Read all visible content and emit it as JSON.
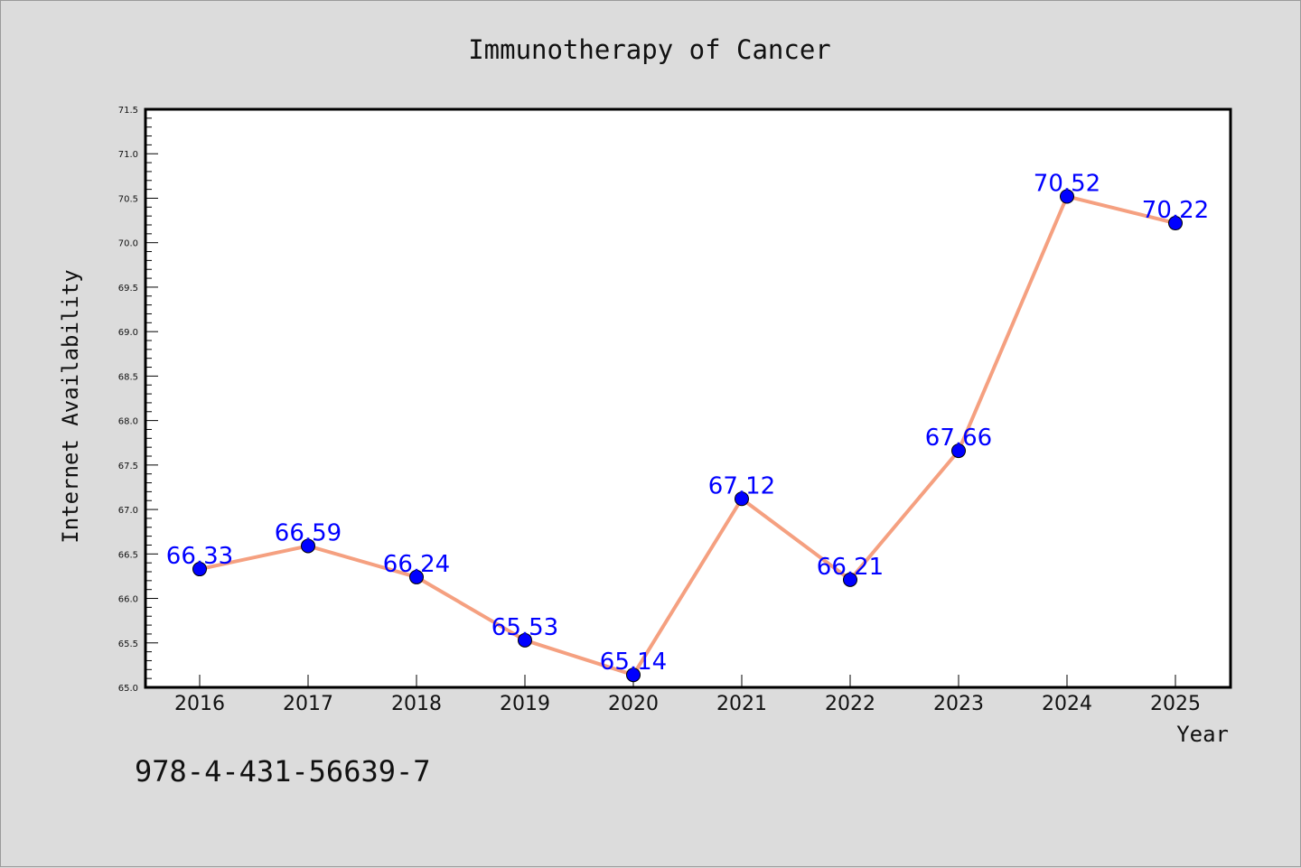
{
  "chart_data": {
    "type": "line",
    "title": "Immunotherapy of Cancer",
    "xlabel": "Year",
    "ylabel": "Internet Availability",
    "categories": [
      "2016",
      "2017",
      "2018",
      "2019",
      "2020",
      "2021",
      "2022",
      "2023",
      "2024",
      "2025"
    ],
    "series": [
      {
        "values": [
          66.33,
          66.59,
          66.24,
          65.53,
          65.14,
          67.12,
          66.21,
          67.66,
          70.52,
          70.22
        ],
        "labels": [
          "66.33",
          "66.59",
          "66.24",
          "65.53",
          "65.14",
          "67.12",
          "66.21",
          "67.66",
          "70.52",
          "70.22"
        ]
      }
    ],
    "ylim": [
      65.0,
      71.5
    ],
    "yticks": [
      "65.0",
      "65.5",
      "66.0",
      "66.5",
      "67.0",
      "67.5",
      "68.0",
      "68.5",
      "69.0",
      "69.5",
      "70.0",
      "70.5",
      "71.0",
      "71.5"
    ],
    "grid": false,
    "line_color": "#f5a080",
    "marker_color": "#0000ff",
    "label_color": "#0000ff"
  },
  "footer": {
    "isbn": "978-4-431-56639-7"
  }
}
